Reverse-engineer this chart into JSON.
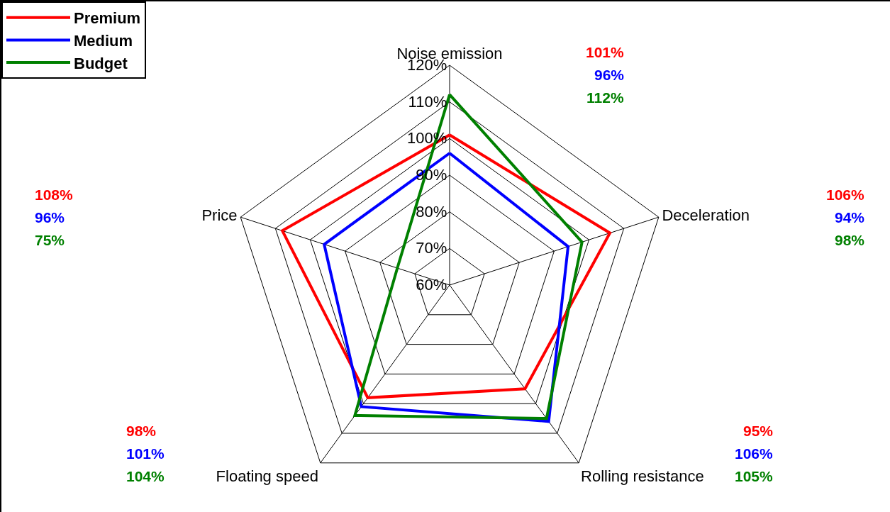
{
  "chart_data": {
    "type": "radar",
    "categories": [
      "Noise emission",
      "Deceleration",
      "Rolling resistance",
      "Floating speed",
      "Price"
    ],
    "series": [
      {
        "name": "Premium",
        "color": "#ff0000",
        "values": [
          101,
          106,
          95,
          98,
          108
        ]
      },
      {
        "name": "Medium",
        "color": "#0000ff",
        "values": [
          96,
          94,
          106,
          101,
          96
        ]
      },
      {
        "name": "Budget",
        "color": "#008000",
        "values": [
          112,
          98,
          105,
          104,
          75
        ]
      }
    ],
    "annotations": [
      "101%",
      "96%",
      "112%",
      "106%",
      "94%",
      "98%",
      "95%",
      "106%",
      "105%",
      "98%",
      "101%",
      "104%",
      "108%",
      "96%",
      "75%"
    ],
    "ylim": [
      60,
      120
    ],
    "yticks": [
      {
        "value": 60,
        "label": "60%"
      },
      {
        "value": 70,
        "label": "70%"
      },
      {
        "value": 80,
        "label": "80%"
      },
      {
        "value": 90,
        "label": "90%"
      },
      {
        "value": 100,
        "label": "100%"
      },
      {
        "value": 110,
        "label": "110%"
      },
      {
        "value": 120,
        "label": "120%"
      }
    ],
    "grid": true,
    "legend": "top left",
    "marker": "none",
    "line_style": "solid"
  }
}
